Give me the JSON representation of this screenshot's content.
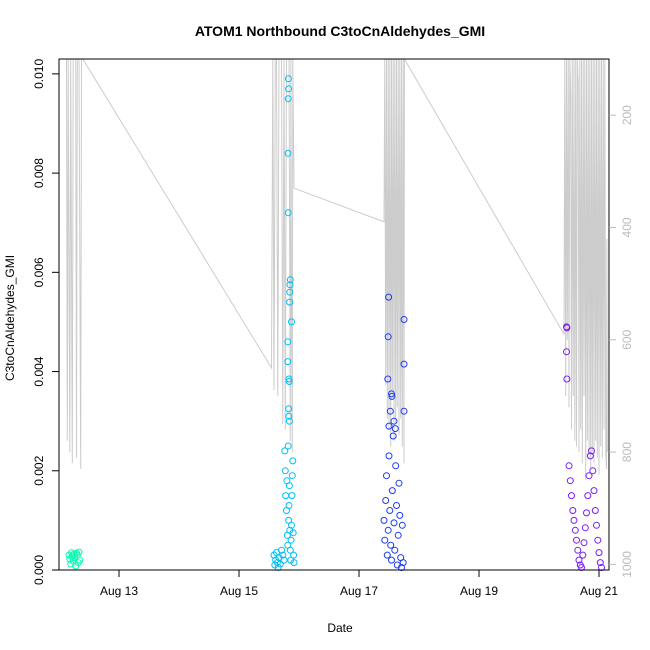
{
  "chart_data": {
    "type": "scatter",
    "title": "ATOM1 Northbound C3toCnAldehydes_GMI",
    "xlabel": "Date",
    "ylabel": "C3toCnAldehydes_GMI",
    "ylim": [
      0,
      0.0103
    ],
    "xlim": [
      "2016-08-12T00:00",
      "2016-08-21T04:00"
    ],
    "x_ticks": [
      "Aug 13",
      "Aug 15",
      "Aug 17",
      "Aug 19",
      "Aug 21"
    ],
    "x_tick_dates": [
      "2016-08-13",
      "2016-08-15",
      "2016-08-17",
      "2016-08-19",
      "2016-08-21"
    ],
    "y_ticks": [
      "0.000",
      "0.002",
      "0.004",
      "0.006",
      "0.008",
      "0.010"
    ],
    "right_axis": {
      "label": "",
      "ticks": [
        "200",
        "400",
        "600",
        "800",
        "1000"
      ],
      "range_top_to_bottom": [
        100,
        1010
      ],
      "color": "#bbbbbb",
      "description": "pressure (inverted), shown by gray line"
    },
    "grid": false,
    "legend": "none",
    "series": [
      {
        "color": "#00ffb0",
        "points": [
          [
            "2016-08-12T04:00",
            0.0003
          ],
          [
            "2016-08-12T04:20",
            0.00022
          ],
          [
            "2016-08-12T04:40",
            0.00012
          ],
          [
            "2016-08-12T05:00",
            0.00035
          ],
          [
            "2016-08-12T05:20",
            0.00028
          ],
          [
            "2016-08-12T05:40",
            0.00018
          ],
          [
            "2016-08-12T06:00",
            0.00032
          ],
          [
            "2016-08-12T06:20",
            0.00025
          ],
          [
            "2016-08-12T06:40",
            8e-05
          ],
          [
            "2016-08-12T07:00",
            0.00034
          ],
          [
            "2016-08-12T07:20",
            0.0003
          ],
          [
            "2016-08-12T07:40",
            0.00015
          ],
          [
            "2016-08-12T08:00",
            0.00036
          ],
          [
            "2016-08-12T08:20",
            0.0002
          ]
        ]
      },
      {
        "color": "#00bff5",
        "points": [
          [
            "2016-08-15T14:00",
            0.0003
          ],
          [
            "2016-08-15T14:20",
            0.0001
          ],
          [
            "2016-08-15T14:40",
            0.0002
          ],
          [
            "2016-08-15T15:00",
            0.00035
          ],
          [
            "2016-08-15T15:20",
            0.00015
          ],
          [
            "2016-08-15T15:40",
            5e-05
          ],
          [
            "2016-08-15T16:00",
            0.00025
          ],
          [
            "2016-08-15T16:30",
            0.00012
          ],
          [
            "2016-08-15T17:00",
            0.0004
          ],
          [
            "2016-08-15T17:30",
            0.0003
          ],
          [
            "2016-08-15T18:00",
            0.0002
          ],
          [
            "2016-08-15T18:20",
            0.0024
          ],
          [
            "2016-08-15T18:30",
            0.002
          ],
          [
            "2016-08-15T18:40",
            0.0015
          ],
          [
            "2016-08-15T19:00",
            0.0012
          ],
          [
            "2016-08-15T19:10",
            0.0018
          ],
          [
            "2016-08-15T19:20",
            0.0007
          ],
          [
            "2016-08-15T19:30",
            0.0005
          ],
          [
            "2016-08-15T19:40",
            0.0025
          ],
          [
            "2016-08-15T19:50",
            0.001
          ],
          [
            "2016-08-15T20:00",
            0.0013
          ],
          [
            "2016-08-15T20:10",
            0.0017
          ],
          [
            "2016-08-15T20:20",
            0.0008
          ],
          [
            "2016-08-15T20:30",
            0.0004
          ],
          [
            "2016-08-15T20:40",
            0.0002
          ],
          [
            "2016-08-15T20:50",
            0.0006
          ],
          [
            "2016-08-15T21:00",
            0.0009
          ],
          [
            "2016-08-15T21:10",
            0.0015
          ],
          [
            "2016-08-15T21:20",
            0.0019
          ],
          [
            "2016-08-15T21:30",
            0.0022
          ],
          [
            "2016-08-15T21:40",
            0.00075
          ],
          [
            "2016-08-15T21:50",
            0.0003
          ],
          [
            "2016-08-15T22:00",
            0.00015
          ],
          [
            "2016-08-15T19:45",
            0.0099
          ],
          [
            "2016-08-15T19:50",
            0.0097
          ],
          [
            "2016-08-15T19:40",
            0.0095
          ],
          [
            "2016-08-15T19:35",
            0.0084
          ],
          [
            "2016-08-15T19:40",
            0.0072
          ],
          [
            "2016-08-15T20:30",
            0.00585
          ],
          [
            "2016-08-15T20:25",
            0.00575
          ],
          [
            "2016-08-15T20:20",
            0.0056
          ],
          [
            "2016-08-15T20:15",
            0.0054
          ],
          [
            "2016-08-15T21:00",
            0.005
          ],
          [
            "2016-08-15T19:30",
            0.0046
          ],
          [
            "2016-08-15T19:30",
            0.0042
          ],
          [
            "2016-08-15T20:00",
            0.00385
          ],
          [
            "2016-08-15T20:05",
            0.0038
          ],
          [
            "2016-08-15T19:50",
            0.00325
          ],
          [
            "2016-08-15T19:55",
            0.0031
          ],
          [
            "2016-08-15T20:10",
            0.003
          ]
        ]
      },
      {
        "color": "#1e3cf5",
        "points": [
          [
            "2016-08-17T10:00",
            0.001
          ],
          [
            "2016-08-17T10:20",
            0.0006
          ],
          [
            "2016-08-17T10:40",
            0.0014
          ],
          [
            "2016-08-17T11:00",
            0.0019
          ],
          [
            "2016-08-17T11:20",
            0.0003
          ],
          [
            "2016-08-17T11:40",
            0.0008
          ],
          [
            "2016-08-17T12:00",
            0.0023
          ],
          [
            "2016-08-17T12:20",
            0.0012
          ],
          [
            "2016-08-17T12:40",
            0.0005
          ],
          [
            "2016-08-17T13:00",
            0.0002
          ],
          [
            "2016-08-17T13:20",
            0.0016
          ],
          [
            "2016-08-17T13:40",
            0.0027
          ],
          [
            "2016-08-17T14:00",
            0.00095
          ],
          [
            "2016-08-17T14:20",
            0.0004
          ],
          [
            "2016-08-17T14:40",
            0.0021
          ],
          [
            "2016-08-17T15:00",
            0.0013
          ],
          [
            "2016-08-17T15:20",
            0.0001
          ],
          [
            "2016-08-17T15:40",
            0.0007
          ],
          [
            "2016-08-17T16:00",
            0.00175
          ],
          [
            "2016-08-17T16:20",
            0.0011
          ],
          [
            "2016-08-17T16:40",
            0.00025
          ],
          [
            "2016-08-17T17:00",
            5e-05
          ],
          [
            "2016-08-17T17:20",
            0.0009
          ],
          [
            "2016-08-17T17:40",
            0.00015
          ],
          [
            "2016-08-17T11:50",
            0.0055
          ],
          [
            "2016-08-17T11:40",
            0.0047
          ],
          [
            "2016-08-17T18:00",
            0.00505
          ],
          [
            "2016-08-17T18:00",
            0.00415
          ],
          [
            "2016-08-17T11:30",
            0.00385
          ],
          [
            "2016-08-17T13:00",
            0.00355
          ],
          [
            "2016-08-17T13:10",
            0.0035
          ],
          [
            "2016-08-17T12:30",
            0.0032
          ],
          [
            "2016-08-17T14:00",
            0.003
          ],
          [
            "2016-08-17T18:00",
            0.0032
          ],
          [
            "2016-08-17T12:00",
            0.0029
          ],
          [
            "2016-08-17T14:30",
            0.00285
          ]
        ]
      },
      {
        "color": "#7a1ff0",
        "points": [
          [
            "2016-08-20T11:00",
            0.0049
          ],
          [
            "2016-08-20T11:10",
            0.00488
          ],
          [
            "2016-08-20T11:00",
            0.0044
          ],
          [
            "2016-08-20T11:10",
            0.00385
          ],
          [
            "2016-08-20T12:00",
            0.0021
          ],
          [
            "2016-08-20T12:30",
            0.0018
          ],
          [
            "2016-08-20T13:00",
            0.0015
          ],
          [
            "2016-08-20T13:30",
            0.0012
          ],
          [
            "2016-08-20T14:00",
            0.001
          ],
          [
            "2016-08-20T14:30",
            0.0008
          ],
          [
            "2016-08-20T15:00",
            0.0006
          ],
          [
            "2016-08-20T15:30",
            0.0004
          ],
          [
            "2016-08-20T16:00",
            0.0002
          ],
          [
            "2016-08-20T16:30",
            0.0001
          ],
          [
            "2016-08-20T17:00",
            5e-05
          ],
          [
            "2016-08-20T17:30",
            0.0003
          ],
          [
            "2016-08-20T18:00",
            0.00055
          ],
          [
            "2016-08-20T18:30",
            0.00085
          ],
          [
            "2016-08-20T19:00",
            0.00115
          ],
          [
            "2016-08-20T19:30",
            0.0015
          ],
          [
            "2016-08-20T20:00",
            0.0019
          ],
          [
            "2016-08-20T20:30",
            0.0023
          ],
          [
            "2016-08-20T21:00",
            0.0024
          ],
          [
            "2016-08-20T21:30",
            0.002
          ],
          [
            "2016-08-20T22:00",
            0.0016
          ],
          [
            "2016-08-20T22:30",
            0.0012
          ],
          [
            "2016-08-20T23:00",
            0.0009
          ],
          [
            "2016-08-20T23:30",
            0.0006
          ],
          [
            "2016-08-21T00:00",
            0.00035
          ],
          [
            "2016-08-21T00:30",
            0.00015
          ],
          [
            "2016-08-21T01:00",
            5e-05
          ]
        ]
      }
    ],
    "pressure_line": {
      "color": "#cccccc",
      "points": [
        [
          "2016-08-12T03:00",
          100
        ],
        [
          "2016-08-12T03:20",
          780
        ],
        [
          "2016-08-12T03:40",
          100
        ],
        [
          "2016-08-12T04:20",
          800
        ],
        [
          "2016-08-12T04:40",
          100
        ],
        [
          "2016-08-12T05:20",
          820
        ],
        [
          "2016-08-12T05:40",
          100
        ],
        [
          "2016-08-12T06:00",
          100
        ],
        [
          "2016-08-12T06:40",
          100
        ],
        [
          "2016-08-12T07:00",
          810
        ],
        [
          "2016-08-12T07:20",
          100
        ],
        [
          "2016-08-12T08:00",
          100
        ],
        [
          "2016-08-12T08:40",
          830
        ],
        [
          "2016-08-12T09:00",
          100
        ],
        [
          "2016-08-12T09:30",
          100
        ],
        [
          "2016-08-15T13:00",
          650
        ],
        [
          "2016-08-15T13:30",
          100
        ],
        [
          "2016-08-15T14:00",
          690
        ],
        [
          "2016-08-15T14:30",
          100
        ],
        [
          "2016-08-15T15:00",
          100
        ],
        [
          "2016-08-15T15:30",
          700
        ],
        [
          "2016-08-15T16:00",
          100
        ],
        [
          "2016-08-15T17:00",
          100
        ],
        [
          "2016-08-15T17:30",
          750
        ],
        [
          "2016-08-15T18:00",
          100
        ],
        [
          "2016-08-15T18:30",
          760
        ],
        [
          "2016-08-15T19:00",
          100
        ],
        [
          "2016-08-15T20:00",
          100
        ],
        [
          "2016-08-15T20:30",
          780
        ],
        [
          "2016-08-15T20:45",
          100
        ],
        [
          "2016-08-15T21:00",
          550
        ],
        [
          "2016-08-15T21:20",
          800
        ],
        [
          "2016-08-15T21:30",
          100
        ],
        [
          "2016-08-15T22:00",
          330
        ],
        [
          "2016-08-17T10:00",
          390
        ],
        [
          "2016-08-17T10:20",
          100
        ],
        [
          "2016-08-17T10:40",
          680
        ],
        [
          "2016-08-17T11:00",
          100
        ],
        [
          "2016-08-17T11:20",
          740
        ],
        [
          "2016-08-17T11:40",
          100
        ],
        [
          "2016-08-17T12:00",
          760
        ],
        [
          "2016-08-17T12:20",
          100
        ],
        [
          "2016-08-17T12:40",
          790
        ],
        [
          "2016-08-17T13:00",
          100
        ],
        [
          "2016-08-17T13:20",
          700
        ],
        [
          "2016-08-17T13:40",
          100
        ],
        [
          "2016-08-17T14:00",
          780
        ],
        [
          "2016-08-17T14:20",
          100
        ],
        [
          "2016-08-17T14:40",
          750
        ],
        [
          "2016-08-17T15:00",
          100
        ],
        [
          "2016-08-17T15:20",
          720
        ],
        [
          "2016-08-17T15:40",
          100
        ],
        [
          "2016-08-17T16:00",
          770
        ],
        [
          "2016-08-17T16:20",
          100
        ],
        [
          "2016-08-17T16:40",
          740
        ],
        [
          "2016-08-17T17:00",
          100
        ],
        [
          "2016-08-17T17:20",
          790
        ],
        [
          "2016-08-17T17:40",
          100
        ],
        [
          "2016-08-17T18:00",
          820
        ],
        [
          "2016-08-17T18:10",
          100
        ],
        [
          "2016-08-20T10:00",
          590
        ],
        [
          "2016-08-20T10:20",
          100
        ],
        [
          "2016-08-20T10:40",
          700
        ],
        [
          "2016-08-20T11:00",
          100
        ],
        [
          "2016-08-20T11:20",
          600
        ],
        [
          "2016-08-20T11:40",
          100
        ],
        [
          "2016-08-20T12:00",
          720
        ],
        [
          "2016-08-20T12:20",
          100
        ],
        [
          "2016-08-20T12:40",
          160
        ],
        [
          "2016-08-20T13:00",
          760
        ],
        [
          "2016-08-20T13:20",
          100
        ],
        [
          "2016-08-20T13:40",
          700
        ],
        [
          "2016-08-20T14:00",
          100
        ],
        [
          "2016-08-20T14:20",
          780
        ],
        [
          "2016-08-20T14:40",
          100
        ],
        [
          "2016-08-20T15:00",
          790
        ],
        [
          "2016-08-20T15:20",
          100
        ],
        [
          "2016-08-20T15:40",
          140
        ],
        [
          "2016-08-20T16:00",
          800
        ],
        [
          "2016-08-20T16:20",
          100
        ],
        [
          "2016-08-20T16:40",
          760
        ],
        [
          "2016-08-20T17:00",
          100
        ],
        [
          "2016-08-20T17:20",
          820
        ],
        [
          "2016-08-20T17:40",
          100
        ],
        [
          "2016-08-20T18:00",
          700
        ],
        [
          "2016-08-20T18:20",
          100
        ],
        [
          "2016-08-20T18:40",
          850
        ],
        [
          "2016-08-20T19:00",
          100
        ],
        [
          "2016-08-20T19:20",
          780
        ],
        [
          "2016-08-20T19:40",
          100
        ],
        [
          "2016-08-20T20:00",
          810
        ],
        [
          "2016-08-20T20:20",
          100
        ],
        [
          "2016-08-20T20:40",
          830
        ],
        [
          "2016-08-20T21:00",
          100
        ],
        [
          "2016-08-20T21:20",
          800
        ],
        [
          "2016-08-20T21:40",
          100
        ],
        [
          "2016-08-20T22:00",
          820
        ],
        [
          "2016-08-20T22:20",
          100
        ],
        [
          "2016-08-20T22:40",
          780
        ],
        [
          "2016-08-20T23:00",
          100
        ],
        [
          "2016-08-20T23:20",
          810
        ],
        [
          "2016-08-20T23:40",
          100
        ],
        [
          "2016-08-21T00:00",
          840
        ],
        [
          "2016-08-21T00:20",
          100
        ],
        [
          "2016-08-21T00:40",
          790
        ],
        [
          "2016-08-21T01:00",
          100
        ],
        [
          "2016-08-21T01:20",
          810
        ],
        [
          "2016-08-21T01:40",
          100
        ],
        [
          "2016-08-21T02:00",
          760
        ],
        [
          "2016-08-21T02:20",
          100
        ],
        [
          "2016-08-21T02:40",
          800
        ],
        [
          "2016-08-21T03:00",
          830
        ],
        [
          "2016-08-21T03:10",
          420
        ],
        [
          "2016-08-21T03:20",
          800
        ]
      ]
    }
  }
}
